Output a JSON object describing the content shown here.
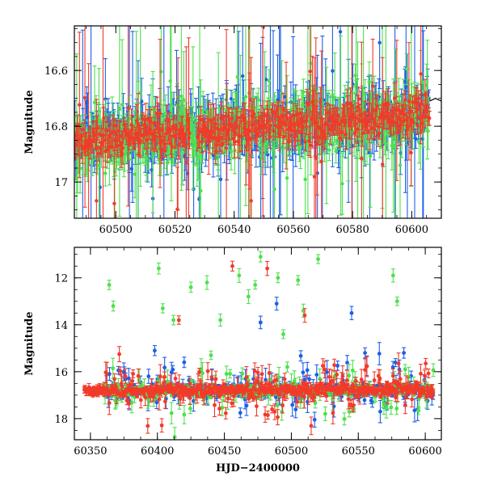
{
  "colors": {
    "blue": "#1f5fe8",
    "green": "#4ee04e",
    "red": "#f23a2a",
    "axis": "#000000"
  },
  "chart_data": [
    {
      "type": "scatter",
      "title": "",
      "xlabel": "",
      "ylabel": "Magnitude",
      "xlim": [
        60486,
        60610
      ],
      "ylim": [
        17.13,
        16.44
      ],
      "inverted_y": true,
      "grid": false,
      "xticks": [
        60500,
        60520,
        60540,
        60560,
        60580,
        60600
      ],
      "xtick_labels": [
        "60500",
        "60520",
        "60540",
        "60560",
        "60580",
        "60600"
      ],
      "yticks": [
        16.6,
        16.8,
        17.0
      ],
      "ytick_labels": [
        "16.6",
        "16.8",
        "17"
      ],
      "series": [
        {
          "color": "blue",
          "baseline": [
            [
              60486,
              16.85
            ],
            [
              60600,
              16.76
            ],
            [
              60606,
              16.73
            ]
          ],
          "scatter": 0.05,
          "error": 0.06
        },
        {
          "color": "green",
          "baseline": [
            [
              60486,
              16.85
            ],
            [
              60600,
              16.76
            ],
            [
              60606,
              16.73
            ]
          ],
          "scatter": 0.05,
          "error": 0.06
        },
        {
          "color": "red",
          "baseline": [
            [
              60486,
              16.85
            ],
            [
              60600,
              16.76
            ],
            [
              60606,
              16.73
            ]
          ],
          "scatter": 0.03,
          "error": 0.04
        }
      ],
      "model_curve": [
        [
          60606,
          16.71
        ],
        [
          60608,
          16.7
        ],
        [
          60610,
          16.71
        ]
      ]
    },
    {
      "type": "scatter",
      "title": "",
      "xlabel": "HJD−2400000",
      "ylabel": "Magnitude",
      "xlim": [
        60338,
        60612
      ],
      "ylim": [
        18.9,
        10.7
      ],
      "inverted_y": true,
      "grid": false,
      "xticks": [
        60350,
        60400,
        60450,
        60500,
        60550,
        60600
      ],
      "xtick_labels": [
        "60350",
        "60400",
        "60450",
        "60500",
        "60550",
        "60600"
      ],
      "yticks": [
        12,
        14,
        16,
        18
      ],
      "ytick_labels": [
        "12",
        "14",
        "16",
        "18"
      ],
      "baseline": [
        [
          60345,
          16.83
        ],
        [
          60600,
          16.76
        ],
        [
          60610,
          16.72
        ]
      ],
      "series": [
        {
          "color": "green",
          "outliers": [
            [
              60364,
              12.3
            ],
            [
              60367,
              13.2
            ],
            [
              60401,
              11.6
            ],
            [
              60404,
              13.3
            ],
            [
              60412,
              13.8
            ],
            [
              60425,
              12.4
            ],
            [
              60437,
              12.2
            ],
            [
              60440,
              15.3
            ],
            [
              60447,
              13.8
            ],
            [
              60461,
              11.9
            ],
            [
              60468,
              12.8
            ],
            [
              60473,
              12.3
            ],
            [
              60477,
              11.1
            ],
            [
              60490,
              12.0
            ],
            [
              60494,
              14.4
            ],
            [
              60497,
              15.8
            ],
            [
              60505,
              12.1
            ],
            [
              60509,
              13.4
            ],
            [
              60520,
              11.2
            ],
            [
              60576,
              11.9
            ],
            [
              60579,
              13.0
            ],
            [
              60585,
              15.9
            ]
          ]
        },
        {
          "color": "blue",
          "outliers": [
            [
              60398,
              15.1
            ],
            [
              60420,
              15.6
            ],
            [
              60477,
              13.9
            ],
            [
              60489,
              13.1
            ],
            [
              60545,
              13.5
            ],
            [
              60555,
              15.2
            ],
            [
              60584,
              15.2
            ]
          ]
        },
        {
          "color": "red",
          "outliers": [
            [
              60416,
              13.8
            ],
            [
              60456,
              11.5
            ],
            [
              60482,
              11.6
            ],
            [
              60510,
              13.6
            ]
          ]
        }
      ]
    }
  ]
}
